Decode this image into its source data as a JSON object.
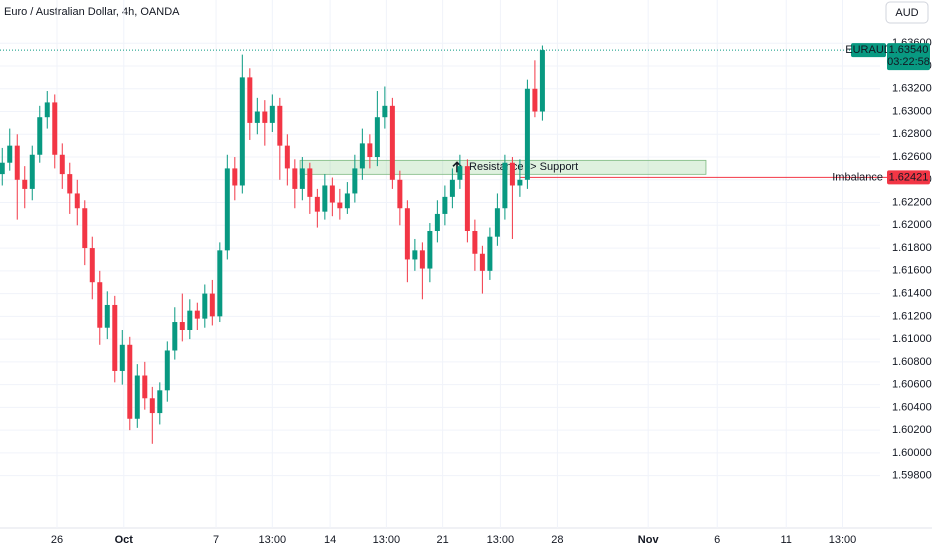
{
  "chart_data": {
    "type": "candlestick",
    "title": "Euro / Australian Dollar, 4h, OANDA",
    "currency": "AUD",
    "up_color": "#089981",
    "down_color": "#f23645",
    "grid": true,
    "open": [
      1.6245,
      1.6255,
      1.627,
      1.624,
      1.6232,
      1.6262,
      1.6295,
      1.6308,
      1.6262,
      1.6245,
      1.6228,
      1.6215,
      1.618,
      1.615,
      1.611,
      1.613,
      1.6072,
      1.6095,
      1.603,
      1.6068,
      1.6048,
      1.6035,
      1.6055,
      1.609,
      1.6115,
      1.6108,
      1.6125,
      1.6118,
      1.614,
      1.612,
      1.6178,
      1.625,
      1.6235,
      1.633,
      1.629,
      1.63,
      1.629,
      1.6305,
      1.627,
      1.625,
      1.6232,
      1.625,
      1.6225,
      1.6212,
      1.6235,
      1.622,
      1.6215,
      1.6228,
      1.625,
      1.6272,
      1.626,
      1.6295,
      1.6305,
      1.624,
      1.6215,
      1.617,
      1.6178,
      1.6162,
      1.6195,
      1.621,
      1.6225,
      1.624,
      1.6252,
      1.6195,
      1.6175,
      1.616,
      1.619,
      1.6215,
      1.6255,
      1.6235,
      1.624,
      1.632,
      1.63
    ],
    "high": [
      1.6268,
      1.6285,
      1.628,
      1.6252,
      1.627,
      1.6305,
      1.6318,
      1.6315,
      1.6272,
      1.6255,
      1.624,
      1.6222,
      1.619,
      1.616,
      1.6142,
      1.6138,
      1.6108,
      1.6102,
      1.6078,
      1.608,
      1.6058,
      1.6062,
      1.6098,
      1.6128,
      1.614,
      1.6135,
      1.6132,
      1.6148,
      1.6152,
      1.6185,
      1.6262,
      1.626,
      1.635,
      1.6338,
      1.6312,
      1.631,
      1.6315,
      1.6312,
      1.628,
      1.6258,
      1.626,
      1.6255,
      1.6232,
      1.6245,
      1.6242,
      1.6232,
      1.6238,
      1.6262,
      1.6285,
      1.628,
      1.6318,
      1.6322,
      1.6312,
      1.6248,
      1.6222,
      1.6188,
      1.6185,
      1.6202,
      1.6222,
      1.6235,
      1.625,
      1.6262,
      1.6258,
      1.6205,
      1.6182,
      1.6198,
      1.6228,
      1.6262,
      1.626,
      1.6258,
      1.6328,
      1.6345,
      1.6358
    ],
    "low": [
      1.6235,
      1.6248,
      1.6205,
      1.6215,
      1.6222,
      1.6255,
      1.6285,
      1.625,
      1.6232,
      1.621,
      1.62,
      1.6165,
      1.6135,
      1.6095,
      1.61,
      1.6062,
      1.606,
      1.602,
      1.6022,
      1.6038,
      1.6008,
      1.6025,
      1.6045,
      1.6082,
      1.6098,
      1.61,
      1.6108,
      1.611,
      1.6112,
      1.6115,
      1.617,
      1.6222,
      1.6228,
      1.6275,
      1.628,
      1.627,
      1.6282,
      1.624,
      1.6235,
      1.6215,
      1.6222,
      1.621,
      1.6198,
      1.6205,
      1.6208,
      1.6205,
      1.621,
      1.622,
      1.624,
      1.625,
      1.6252,
      1.6285,
      1.6232,
      1.62,
      1.615,
      1.616,
      1.6135,
      1.615,
      1.6185,
      1.62,
      1.6215,
      1.6232,
      1.6185,
      1.616,
      1.614,
      1.6152,
      1.6182,
      1.6205,
      1.6188,
      1.6225,
      1.6232,
      1.6295,
      1.6292
    ],
    "close": [
      1.6255,
      1.627,
      1.624,
      1.6232,
      1.6262,
      1.6295,
      1.6308,
      1.6262,
      1.6245,
      1.6228,
      1.6215,
      1.618,
      1.615,
      1.611,
      1.613,
      1.6072,
      1.6095,
      1.603,
      1.6068,
      1.6048,
      1.6035,
      1.6055,
      1.609,
      1.6115,
      1.6108,
      1.6125,
      1.6118,
      1.614,
      1.612,
      1.6178,
      1.625,
      1.6235,
      1.633,
      1.629,
      1.63,
      1.629,
      1.6305,
      1.627,
      1.625,
      1.6232,
      1.625,
      1.6225,
      1.6212,
      1.6235,
      1.622,
      1.6215,
      1.6228,
      1.625,
      1.6272,
      1.626,
      1.6295,
      1.6305,
      1.624,
      1.6215,
      1.617,
      1.6178,
      1.6162,
      1.6195,
      1.621,
      1.6225,
      1.624,
      1.6252,
      1.6195,
      1.6175,
      1.616,
      1.619,
      1.6215,
      1.6255,
      1.6235,
      1.624,
      1.632,
      1.63,
      1.6354
    ],
    "ylim": [
      1.5934,
      1.6398
    ],
    "yticks": [
      {
        "value": 1.636,
        "label": "1.63600"
      },
      {
        "value": 1.634,
        "label": "1.63400"
      },
      {
        "value": 1.632,
        "label": "1.63200"
      },
      {
        "value": 1.63,
        "label": "1.63000"
      },
      {
        "value": 1.628,
        "label": "1.62800"
      },
      {
        "value": 1.626,
        "label": "1.62600"
      },
      {
        "value": 1.624,
        "label": "1.62400"
      },
      {
        "value": 1.622,
        "label": "1.62200"
      },
      {
        "value": 1.62,
        "label": "1.62000"
      },
      {
        "value": 1.618,
        "label": "1.61800"
      },
      {
        "value": 1.616,
        "label": "1.61600"
      },
      {
        "value": 1.614,
        "label": "1.61400"
      },
      {
        "value": 1.612,
        "label": "1.61200"
      },
      {
        "value": 1.61,
        "label": "1.61000"
      },
      {
        "value": 1.608,
        "label": "1.60800"
      },
      {
        "value": 1.606,
        "label": "1.60600"
      },
      {
        "value": 1.604,
        "label": "1.60400"
      },
      {
        "value": 1.602,
        "label": "1.60200"
      },
      {
        "value": 1.6,
        "label": "1.60000"
      },
      {
        "value": 1.598,
        "label": "1.59800"
      }
    ],
    "xlim": [
      0,
      117.3
    ],
    "xticks": [
      {
        "value": 7.6,
        "label": "26"
      },
      {
        "value": 16.5,
        "label": "Oct"
      },
      {
        "value": 28.8,
        "label": "7"
      },
      {
        "value": 36.3,
        "label": "13:00"
      },
      {
        "value": 44,
        "label": "14"
      },
      {
        "value": 51.5,
        "label": "13:00"
      },
      {
        "value": 59,
        "label": "21"
      },
      {
        "value": 66.7,
        "label": "13:00"
      },
      {
        "value": 74.3,
        "label": "28"
      },
      {
        "value": 86.4,
        "label": "Nov"
      },
      {
        "value": 95.6,
        "label": "6"
      },
      {
        "value": 104.8,
        "label": "11"
      },
      {
        "value": 112.3,
        "label": "13:00"
      }
    ],
    "last_price": {
      "symbol": "EURAUD",
      "value": 1.6354,
      "label": "1.63540",
      "countdown": "03:22:58"
    },
    "imbalance": {
      "text": "Imbalance",
      "value": 1.62421,
      "label": "1.62421",
      "x_start": 69.3
    },
    "zone": {
      "text": "Resistance -> Support",
      "ylim": [
        1.62448,
        1.62571
      ],
      "xlim": [
        40,
        94.1
      ]
    }
  }
}
